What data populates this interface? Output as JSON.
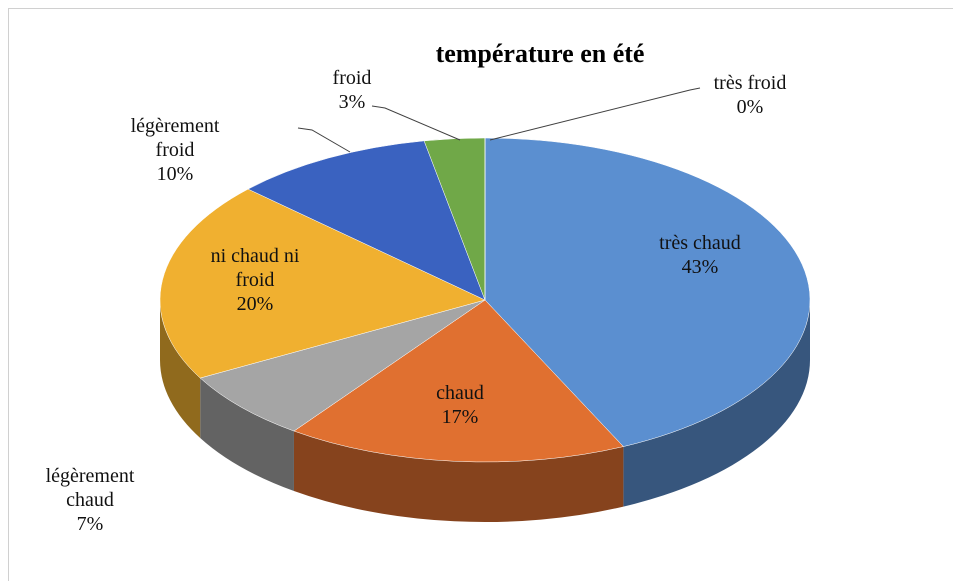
{
  "chart_data": {
    "type": "pie3d",
    "title": "température en été",
    "categories": [
      "très chaud",
      "chaud",
      "légèrement chaud",
      "ni chaud ni froid",
      "légèrement froid",
      "froid",
      "très froid"
    ],
    "values": [
      43,
      17,
      7,
      20,
      10,
      3,
      0
    ],
    "value_labels": [
      "43%",
      "17%",
      "7%",
      "20%",
      "10%",
      "3%",
      "0%"
    ],
    "colors": [
      "#5b8fd0",
      "#e07030",
      "#a5a5a5",
      "#f0b030",
      "#3a62c0",
      "#70a848",
      "#264478"
    ]
  }
}
